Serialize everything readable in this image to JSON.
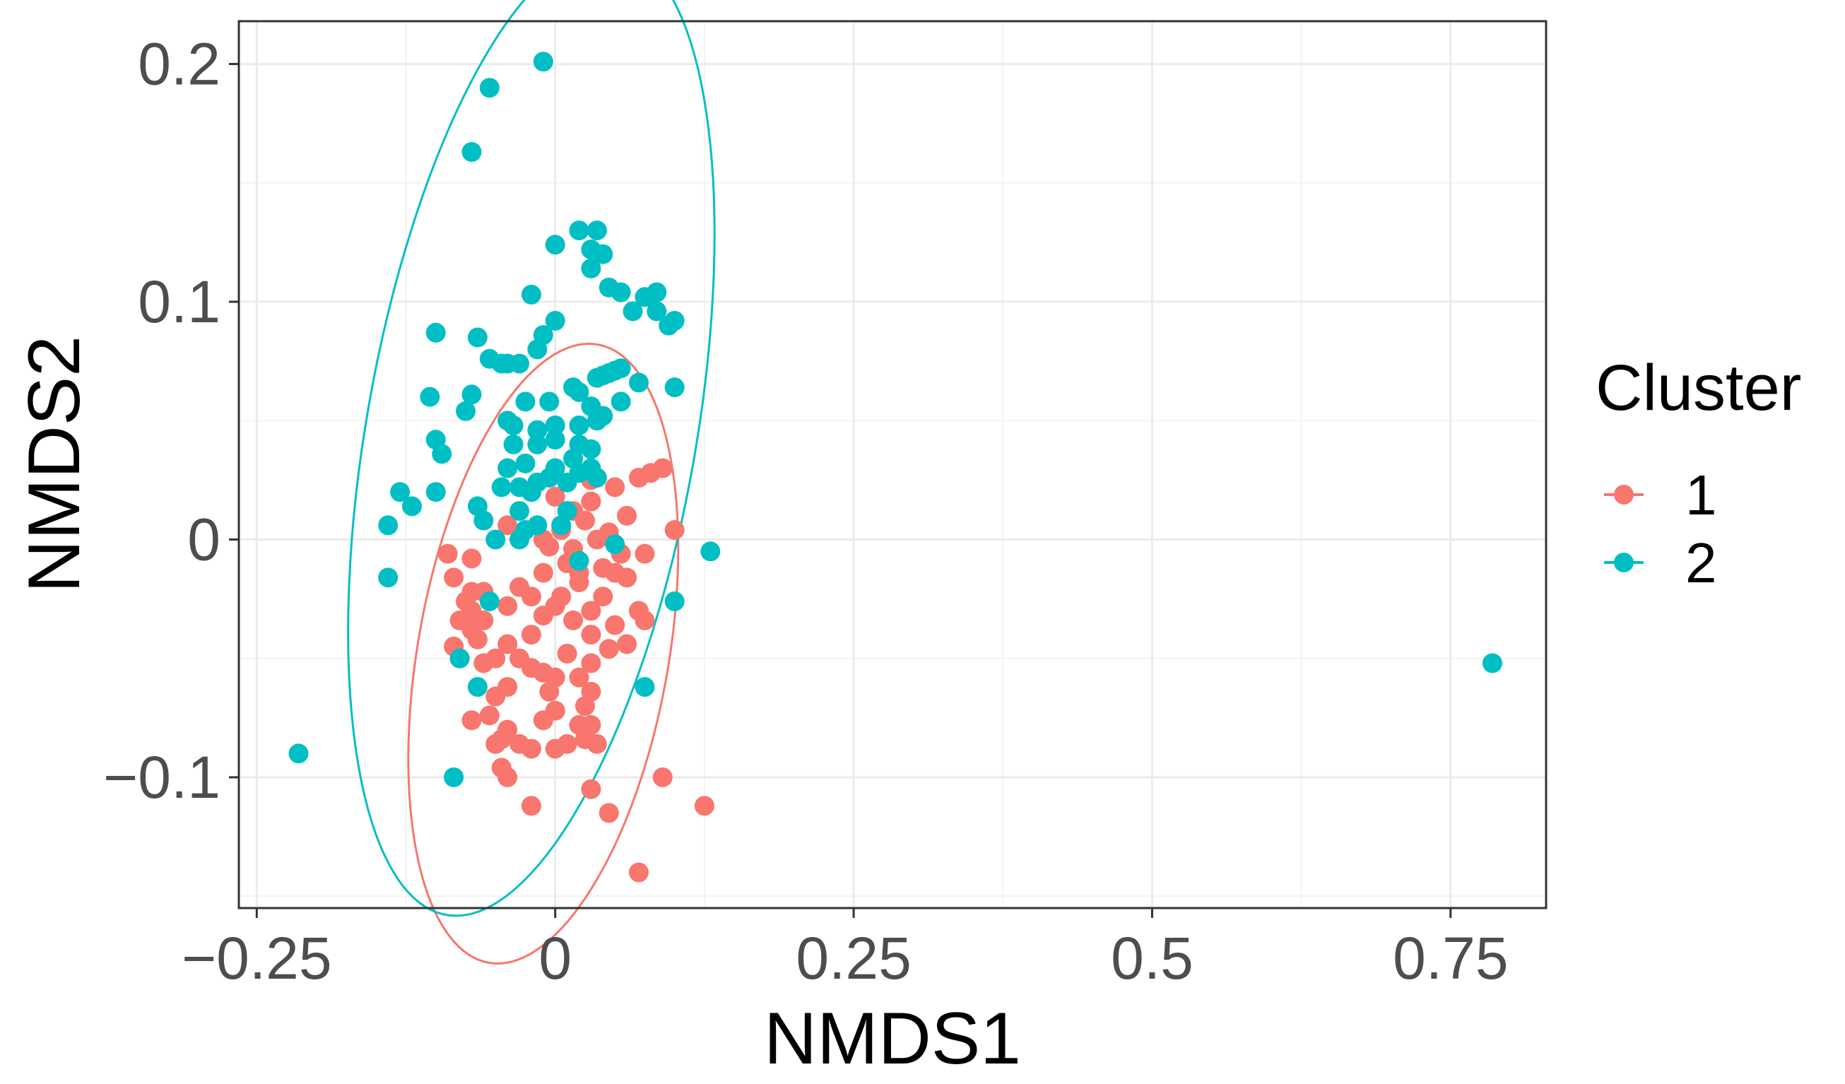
{
  "chart_data": {
    "type": "scatter",
    "title": "",
    "xlabel": "NMDS1",
    "ylabel": "NMDS2",
    "xlim": [
      -0.265,
      0.83
    ],
    "ylim": [
      -0.155,
      0.218
    ],
    "xticks": [
      {
        "value": -0.25,
        "label": "−0.25"
      },
      {
        "value": 0,
        "label": "0"
      },
      {
        "value": 0.25,
        "label": "0.25"
      },
      {
        "value": 0.5,
        "label": "0.5"
      },
      {
        "value": 0.75,
        "label": "0.75"
      }
    ],
    "yticks": [
      {
        "value": -0.1,
        "label": "−0.1"
      },
      {
        "value": 0,
        "label": "0"
      },
      {
        "value": 0.1,
        "label": "0.1"
      },
      {
        "value": 0.2,
        "label": "0.2"
      }
    ],
    "grid": true,
    "legend": {
      "title": "Cluster",
      "position": "right"
    },
    "series": [
      {
        "name": "1",
        "color": "#F8766D",
        "ellipse": {
          "cx": -0.01,
          "cy": -0.048,
          "rx": 0.105,
          "ry": 0.132,
          "angle_deg": 10
        },
        "points": [
          [
            0.09,
            0.03
          ],
          [
            0.08,
            0.028
          ],
          [
            0.07,
            0.026
          ],
          [
            0.03,
            0.025
          ],
          [
            0.05,
            0.022
          ],
          [
            -0.02,
            0.02
          ],
          [
            0.0,
            0.018
          ],
          [
            0.03,
            0.016
          ],
          [
            0.015,
            0.012
          ],
          [
            0.06,
            0.01
          ],
          [
            0.025,
            0.008
          ],
          [
            -0.04,
            0.006
          ],
          [
            0.005,
            0.004
          ],
          [
            0.045,
            0.003
          ],
          [
            0.1,
            0.004
          ],
          [
            -0.01,
            0.0
          ],
          [
            0.035,
            0.0
          ],
          [
            -0.005,
            -0.003
          ],
          [
            0.015,
            -0.004
          ],
          [
            -0.09,
            -0.006
          ],
          [
            -0.07,
            -0.008
          ],
          [
            0.055,
            -0.006
          ],
          [
            0.075,
            -0.006
          ],
          [
            0.01,
            -0.01
          ],
          [
            0.04,
            -0.012
          ],
          [
            -0.01,
            -0.014
          ],
          [
            0.02,
            -0.014
          ],
          [
            -0.085,
            -0.016
          ],
          [
            0.05,
            -0.014
          ],
          [
            0.06,
            -0.016
          ],
          [
            -0.03,
            -0.02
          ],
          [
            0.02,
            -0.018
          ],
          [
            -0.07,
            -0.022
          ],
          [
            -0.06,
            -0.022
          ],
          [
            -0.075,
            -0.026
          ],
          [
            -0.02,
            -0.024
          ],
          [
            0.005,
            -0.024
          ],
          [
            0.04,
            -0.024
          ],
          [
            0.0,
            -0.028
          ],
          [
            -0.07,
            -0.03
          ],
          [
            -0.04,
            -0.028
          ],
          [
            0.03,
            -0.03
          ],
          [
            0.07,
            -0.03
          ],
          [
            -0.08,
            -0.034
          ],
          [
            -0.06,
            -0.034
          ],
          [
            -0.01,
            -0.032
          ],
          [
            0.015,
            -0.034
          ],
          [
            -0.07,
            -0.038
          ],
          [
            0.05,
            -0.036
          ],
          [
            0.075,
            -0.034
          ],
          [
            -0.065,
            -0.042
          ],
          [
            -0.04,
            -0.044
          ],
          [
            -0.02,
            -0.04
          ],
          [
            0.03,
            -0.04
          ],
          [
            -0.085,
            -0.045
          ],
          [
            0.06,
            -0.044
          ],
          [
            -0.05,
            -0.05
          ],
          [
            -0.03,
            -0.05
          ],
          [
            0.01,
            -0.048
          ],
          [
            0.045,
            -0.046
          ],
          [
            -0.08,
            -0.05
          ],
          [
            -0.06,
            -0.052
          ],
          [
            0.03,
            -0.052
          ],
          [
            -0.02,
            -0.054
          ],
          [
            -0.01,
            -0.056
          ],
          [
            0.0,
            -0.058
          ],
          [
            0.02,
            -0.058
          ],
          [
            -0.04,
            -0.062
          ],
          [
            -0.005,
            -0.064
          ],
          [
            0.03,
            -0.064
          ],
          [
            0.025,
            -0.07
          ],
          [
            -0.05,
            -0.066
          ],
          [
            0.0,
            -0.072
          ],
          [
            -0.055,
            -0.074
          ],
          [
            -0.01,
            -0.076
          ],
          [
            -0.07,
            -0.076
          ],
          [
            0.03,
            -0.078
          ],
          [
            0.02,
            -0.078
          ],
          [
            -0.04,
            -0.08
          ],
          [
            -0.045,
            -0.084
          ],
          [
            0.025,
            -0.084
          ],
          [
            -0.05,
            -0.086
          ],
          [
            0.035,
            -0.086
          ],
          [
            -0.03,
            -0.086
          ],
          [
            0.01,
            -0.086
          ],
          [
            0.0,
            -0.088
          ],
          [
            -0.02,
            -0.088
          ],
          [
            -0.045,
            -0.096
          ],
          [
            -0.04,
            -0.1
          ],
          [
            0.09,
            -0.1
          ],
          [
            0.03,
            -0.105
          ],
          [
            -0.02,
            -0.112
          ],
          [
            0.125,
            -0.112
          ],
          [
            0.045,
            -0.115
          ],
          [
            0.07,
            -0.14
          ]
        ]
      },
      {
        "name": "2",
        "color": "#00BFC4",
        "ellipse": {
          "cx": -0.02,
          "cy": 0.045,
          "rx": 0.138,
          "ry": 0.206,
          "angle_deg": 10
        },
        "points": [
          [
            -0.01,
            0.201
          ],
          [
            -0.055,
            0.19
          ],
          [
            -0.07,
            0.163
          ],
          [
            0.02,
            0.13
          ],
          [
            0.035,
            0.13
          ],
          [
            0.03,
            0.122
          ],
          [
            0.0,
            0.124
          ],
          [
            0.04,
            0.12
          ],
          [
            0.03,
            0.114
          ],
          [
            0.045,
            0.106
          ],
          [
            0.055,
            0.104
          ],
          [
            0.085,
            0.104
          ],
          [
            0.075,
            0.102
          ],
          [
            0.065,
            0.096
          ],
          [
            0.085,
            0.096
          ],
          [
            -0.02,
            0.103
          ],
          [
            0.1,
            0.092
          ],
          [
            0.095,
            0.09
          ],
          [
            0.0,
            0.092
          ],
          [
            -0.1,
            0.087
          ],
          [
            -0.065,
            0.085
          ],
          [
            -0.015,
            0.08
          ],
          [
            -0.01,
            0.086
          ],
          [
            -0.055,
            0.076
          ],
          [
            -0.045,
            0.074
          ],
          [
            -0.04,
            0.074
          ],
          [
            -0.03,
            0.074
          ],
          [
            0.055,
            0.072
          ],
          [
            0.05,
            0.071
          ],
          [
            0.045,
            0.07
          ],
          [
            0.04,
            0.069
          ],
          [
            0.035,
            0.068
          ],
          [
            0.07,
            0.066
          ],
          [
            0.1,
            0.064
          ],
          [
            0.015,
            0.064
          ],
          [
            0.02,
            0.062
          ],
          [
            -0.105,
            0.06
          ],
          [
            -0.07,
            0.061
          ],
          [
            -0.025,
            0.058
          ],
          [
            -0.005,
            0.058
          ],
          [
            0.055,
            0.058
          ],
          [
            0.03,
            0.056
          ],
          [
            0.04,
            0.052
          ],
          [
            -0.075,
            0.054
          ],
          [
            -0.035,
            0.048
          ],
          [
            -0.04,
            0.05
          ],
          [
            -0.015,
            0.046
          ],
          [
            0.0,
            0.048
          ],
          [
            0.02,
            0.048
          ],
          [
            0.035,
            0.05
          ],
          [
            -0.1,
            0.042
          ],
          [
            -0.035,
            0.04
          ],
          [
            -0.015,
            0.04
          ],
          [
            0.0,
            0.042
          ],
          [
            0.02,
            0.04
          ],
          [
            -0.095,
            0.036
          ],
          [
            0.03,
            0.038
          ],
          [
            -0.025,
            0.032
          ],
          [
            0.015,
            0.034
          ],
          [
            -0.04,
            0.03
          ],
          [
            0.0,
            0.03
          ],
          [
            0.02,
            0.028
          ],
          [
            0.03,
            0.03
          ],
          [
            -0.005,
            0.026
          ],
          [
            -0.015,
            0.024
          ],
          [
            0.01,
            0.024
          ],
          [
            0.035,
            0.026
          ],
          [
            -0.045,
            0.022
          ],
          [
            -0.03,
            0.022
          ],
          [
            -0.02,
            0.02
          ],
          [
            -0.1,
            0.02
          ],
          [
            -0.13,
            0.02
          ],
          [
            -0.12,
            0.014
          ],
          [
            -0.065,
            0.014
          ],
          [
            -0.03,
            0.012
          ],
          [
            0.01,
            0.012
          ],
          [
            -0.06,
            0.008
          ],
          [
            -0.015,
            0.006
          ],
          [
            0.005,
            0.006
          ],
          [
            -0.14,
            0.006
          ],
          [
            -0.025,
            0.004
          ],
          [
            -0.05,
            0.0
          ],
          [
            -0.03,
            0.0
          ],
          [
            0.05,
            -0.002
          ],
          [
            0.13,
            -0.005
          ],
          [
            0.02,
            -0.009
          ],
          [
            -0.14,
            -0.016
          ],
          [
            -0.055,
            -0.026
          ],
          [
            0.1,
            -0.026
          ],
          [
            -0.08,
            -0.05
          ],
          [
            -0.065,
            -0.062
          ],
          [
            0.075,
            -0.062
          ],
          [
            -0.215,
            -0.09
          ],
          [
            -0.085,
            -0.1
          ],
          [
            0.785,
            -0.052
          ]
        ]
      }
    ]
  }
}
